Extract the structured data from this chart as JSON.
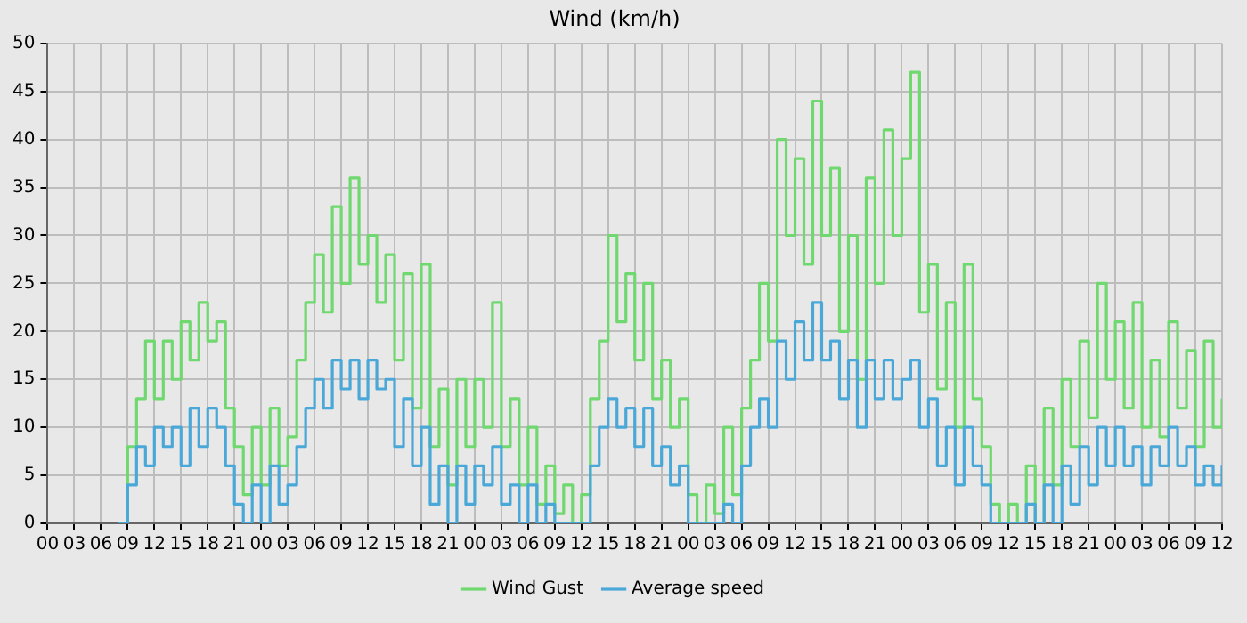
{
  "chart_data": {
    "type": "step",
    "title": "Wind (km/h)",
    "x": [
      8,
      9,
      10,
      11,
      12,
      13,
      14,
      15,
      16,
      17,
      18,
      19,
      20,
      21,
      22,
      23,
      24,
      25,
      26,
      27,
      28,
      29,
      30,
      31,
      32,
      33,
      34,
      35,
      36,
      37,
      38,
      39,
      40,
      41,
      42,
      43,
      44,
      45,
      46,
      47,
      48,
      49,
      50,
      51,
      52,
      53,
      54,
      55,
      56,
      57,
      58,
      59,
      60,
      61,
      62,
      63,
      64,
      65,
      66,
      67,
      68,
      69,
      70,
      71,
      72,
      73,
      74,
      75,
      76,
      77,
      78,
      79,
      80,
      81,
      82,
      83,
      84,
      85,
      86,
      87,
      88,
      89,
      90,
      91,
      92,
      93,
      94,
      95,
      96,
      97,
      98,
      99,
      100,
      101,
      102,
      103,
      104,
      105,
      106,
      107,
      108,
      109,
      110,
      111,
      112,
      113,
      114,
      115,
      116,
      117,
      118,
      119,
      120,
      121,
      122,
      123,
      124,
      125,
      126,
      127,
      128,
      129,
      130,
      131,
      132
    ],
    "series": [
      {
        "name": "Wind Gust",
        "color": "#6fd86f",
        "values": [
          0,
          8,
          13,
          19,
          13,
          19,
          15,
          21,
          17,
          23,
          19,
          21,
          12,
          8,
          3,
          10,
          4,
          12,
          6,
          9,
          17,
          23,
          28,
          22,
          33,
          25,
          36,
          27,
          30,
          23,
          28,
          17,
          26,
          12,
          27,
          8,
          14,
          4,
          15,
          8,
          15,
          10,
          23,
          8,
          13,
          4,
          10,
          2,
          6,
          1,
          4,
          0,
          3,
          13,
          19,
          30,
          21,
          26,
          17,
          25,
          13,
          17,
          10,
          13,
          3,
          0,
          4,
          1,
          10,
          3,
          12,
          17,
          25,
          19,
          40,
          30,
          38,
          27,
          44,
          30,
          37,
          20,
          30,
          15,
          36,
          25,
          41,
          30,
          38,
          47,
          22,
          27,
          14,
          23,
          10,
          27,
          13,
          8,
          2,
          0,
          2,
          0,
          6,
          0,
          12,
          4,
          15,
          8,
          19,
          11,
          25,
          15,
          21,
          12,
          23,
          10,
          17,
          9,
          21,
          12,
          18,
          8,
          19,
          10,
          13
        ]
      },
      {
        "name": "Average speed",
        "color": "#4aa8d8",
        "values": [
          0,
          4,
          8,
          6,
          10,
          8,
          10,
          6,
          12,
          8,
          12,
          10,
          6,
          2,
          0,
          4,
          0,
          6,
          2,
          4,
          8,
          12,
          15,
          12,
          17,
          14,
          17,
          13,
          17,
          14,
          15,
          8,
          13,
          6,
          10,
          2,
          6,
          0,
          6,
          2,
          6,
          4,
          8,
          2,
          4,
          0,
          4,
          0,
          2,
          0,
          0,
          0,
          0,
          6,
          10,
          13,
          10,
          12,
          8,
          12,
          6,
          8,
          4,
          6,
          0,
          0,
          0,
          0,
          2,
          0,
          6,
          10,
          13,
          10,
          19,
          15,
          21,
          17,
          23,
          17,
          19,
          13,
          17,
          10,
          17,
          13,
          17,
          13,
          15,
          17,
          10,
          13,
          6,
          10,
          4,
          10,
          6,
          4,
          0,
          0,
          0,
          0,
          2,
          0,
          4,
          0,
          6,
          2,
          8,
          4,
          10,
          6,
          10,
          6,
          8,
          4,
          8,
          6,
          10,
          6,
          8,
          4,
          6,
          4,
          6
        ]
      }
    ],
    "xlim": [
      0,
      132
    ],
    "xticks": [
      {
        "value": 0,
        "label": "00"
      },
      {
        "value": 3,
        "label": "03"
      },
      {
        "value": 6,
        "label": "06"
      },
      {
        "value": 9,
        "label": "09"
      },
      {
        "value": 12,
        "label": "12"
      },
      {
        "value": 15,
        "label": "15"
      },
      {
        "value": 18,
        "label": "18"
      },
      {
        "value": 21,
        "label": "21"
      },
      {
        "value": 24,
        "label": "00"
      },
      {
        "value": 27,
        "label": "03"
      },
      {
        "value": 30,
        "label": "06"
      },
      {
        "value": 33,
        "label": "09"
      },
      {
        "value": 36,
        "label": "12"
      },
      {
        "value": 39,
        "label": "15"
      },
      {
        "value": 42,
        "label": "18"
      },
      {
        "value": 45,
        "label": "21"
      },
      {
        "value": 48,
        "label": "00"
      },
      {
        "value": 51,
        "label": "03"
      },
      {
        "value": 54,
        "label": "06"
      },
      {
        "value": 57,
        "label": "09"
      },
      {
        "value": 60,
        "label": "12"
      },
      {
        "value": 63,
        "label": "15"
      },
      {
        "value": 66,
        "label": "18"
      },
      {
        "value": 69,
        "label": "21"
      },
      {
        "value": 72,
        "label": "00"
      },
      {
        "value": 75,
        "label": "03"
      },
      {
        "value": 78,
        "label": "06"
      },
      {
        "value": 81,
        "label": "09"
      },
      {
        "value": 84,
        "label": "12"
      },
      {
        "value": 87,
        "label": "15"
      },
      {
        "value": 90,
        "label": "18"
      },
      {
        "value": 93,
        "label": "21"
      },
      {
        "value": 96,
        "label": "00"
      },
      {
        "value": 99,
        "label": "03"
      },
      {
        "value": 102,
        "label": "06"
      },
      {
        "value": 105,
        "label": "09"
      },
      {
        "value": 108,
        "label": "12"
      },
      {
        "value": 111,
        "label": "15"
      },
      {
        "value": 114,
        "label": "18"
      },
      {
        "value": 117,
        "label": "21"
      },
      {
        "value": 120,
        "label": "00"
      },
      {
        "value": 123,
        "label": "03"
      },
      {
        "value": 126,
        "label": "06"
      },
      {
        "value": 129,
        "label": "09"
      },
      {
        "value": 132,
        "label": "12"
      }
    ],
    "ylim": [
      0,
      50
    ],
    "yticks": [
      0,
      5,
      10,
      15,
      20,
      25,
      30,
      35,
      40,
      45,
      50
    ],
    "grid": true,
    "legend": "bottom",
    "marker": "none",
    "line_style": "solid"
  }
}
